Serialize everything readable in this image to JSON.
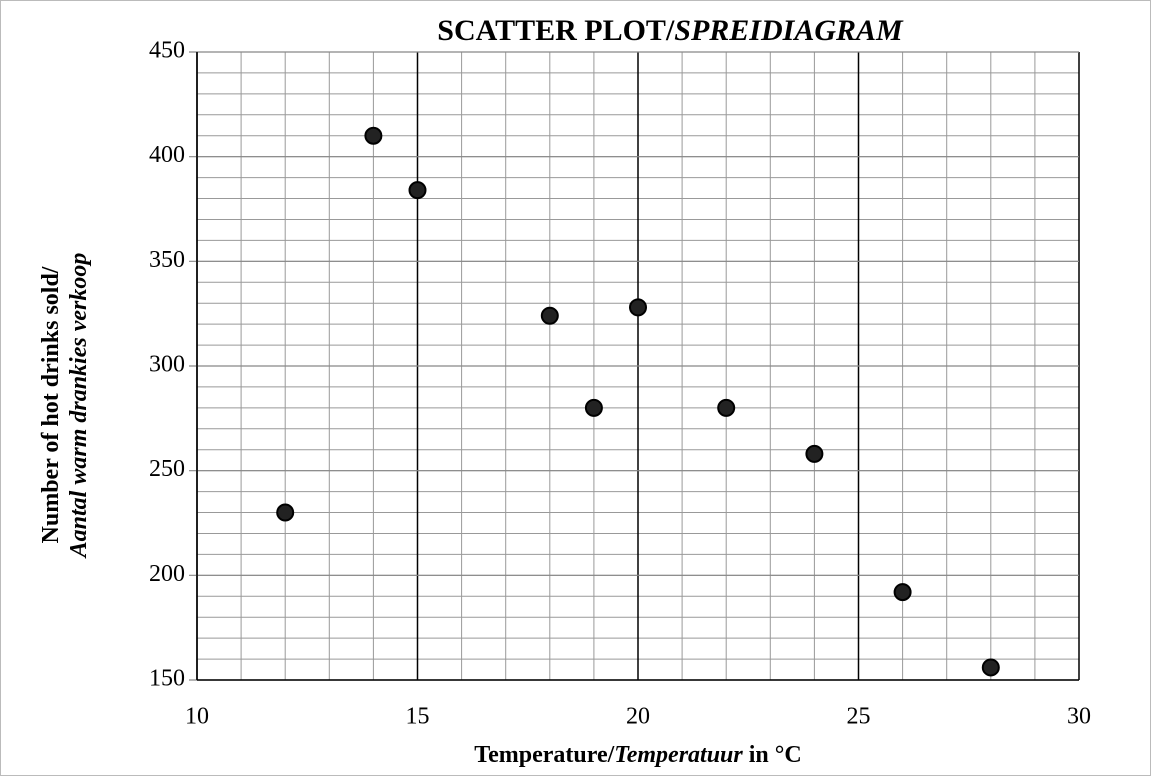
{
  "chart_data": {
    "type": "scatter",
    "title": [
      {
        "text": "SCATTER PLOT/"
      },
      {
        "text": "SPREIDIAGRAM",
        "italic": true
      }
    ],
    "x_label": [
      {
        "text": "Temperature/"
      },
      {
        "text": "Temperatuur",
        "italic": true
      },
      {
        "text": " in °C"
      }
    ],
    "y_label": [
      [
        {
          "text": "Number of hot drinks sold/"
        }
      ],
      [
        {
          "text": "Aantal warm drankies verkoop",
          "italic": true
        }
      ]
    ],
    "series": [
      {
        "color": "#222222",
        "x": [
          12,
          14,
          15,
          18,
          19,
          20,
          22,
          24,
          26,
          28
        ],
        "values": [
          230,
          410,
          384,
          324,
          280,
          328,
          280,
          258,
          192,
          156
        ]
      }
    ],
    "xlim": [
      10,
      30
    ],
    "xticks": [
      10,
      15,
      20,
      25,
      30
    ],
    "ylim": [
      150,
      450
    ],
    "yticks": [
      150,
      200,
      250,
      300,
      350,
      400,
      450
    ],
    "grid": true,
    "minor_grid": {
      "x": 1,
      "y": 10
    }
  }
}
